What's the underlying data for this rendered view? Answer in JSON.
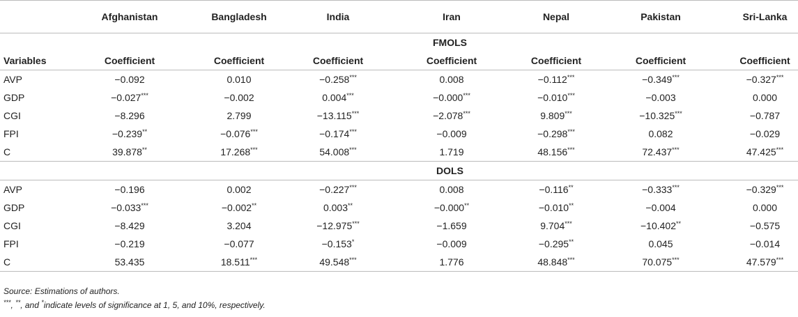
{
  "table": {
    "columns": [
      "Afghanistan",
      "Bangladesh",
      "India",
      "Iran",
      "Nepal",
      "Pakistan",
      "Sri-Lanka"
    ],
    "sections": [
      {
        "title": "FMOLS",
        "row_header": "Variables",
        "col_header": "Coefficient",
        "rows": [
          {
            "label": "AVP",
            "cells": [
              {
                "v": "−0.092"
              },
              {
                "v": "0.010"
              },
              {
                "v": "−0.258",
                "sig": "***"
              },
              {
                "v": "0.008"
              },
              {
                "v": "−0.112",
                "sig": "***"
              },
              {
                "v": "−0.349",
                "sig": "***"
              },
              {
                "v": "−0.327",
                "sig": "***"
              }
            ]
          },
          {
            "label": "GDP",
            "cells": [
              {
                "v": "−0.027",
                "sig": "***"
              },
              {
                "v": "−0.002"
              },
              {
                "v": "0.004",
                "sig": "***"
              },
              {
                "v": "−0.000",
                "sig": "***"
              },
              {
                "v": "−0.010",
                "sig": "***"
              },
              {
                "v": "−0.003"
              },
              {
                "v": "0.000"
              }
            ]
          },
          {
            "label": "CGI",
            "cells": [
              {
                "v": "−8.296"
              },
              {
                "v": "2.799"
              },
              {
                "v": "−13.115",
                "sig": "***"
              },
              {
                "v": "−2.078",
                "sig": "***"
              },
              {
                "v": "9.809",
                "sig": "***"
              },
              {
                "v": "−10.325",
                "sig": "***"
              },
              {
                "v": "−0.787"
              }
            ]
          },
          {
            "label": "FPI",
            "cells": [
              {
                "v": "−0.239",
                "sig": "**"
              },
              {
                "v": "−0.076",
                "sig": "***"
              },
              {
                "v": "−0.174",
                "sig": "***"
              },
              {
                "v": "−0.009"
              },
              {
                "v": "−0.298",
                "sig": "***"
              },
              {
                "v": "0.082"
              },
              {
                "v": "−0.029"
              }
            ]
          },
          {
            "label": "C",
            "cells": [
              {
                "v": "39.878",
                "sig": "**"
              },
              {
                "v": "17.268",
                "sig": "***"
              },
              {
                "v": "54.008",
                "sig": "***"
              },
              {
                "v": "1.719"
              },
              {
                "v": "48.156",
                "sig": "***"
              },
              {
                "v": "72.437",
                "sig": "***"
              },
              {
                "v": "47.425",
                "sig": "***"
              }
            ]
          }
        ]
      },
      {
        "title": "DOLS",
        "rows": [
          {
            "label": "AVP",
            "cells": [
              {
                "v": "−0.196"
              },
              {
                "v": "0.002"
              },
              {
                "v": "−0.227",
                "sig": "***"
              },
              {
                "v": "0.008"
              },
              {
                "v": "−0.116",
                "sig": "**"
              },
              {
                "v": "−0.333",
                "sig": "***"
              },
              {
                "v": "−0.329",
                "sig": "***"
              }
            ]
          },
          {
            "label": "GDP",
            "cells": [
              {
                "v": "−0.033",
                "sig": "***"
              },
              {
                "v": "−0.002",
                "sig": "**"
              },
              {
                "v": "0.003",
                "sig": "**"
              },
              {
                "v": "−0.000",
                "sig": "**"
              },
              {
                "v": "−0.010",
                "sig": "**"
              },
              {
                "v": "−0.004"
              },
              {
                "v": "0.000"
              }
            ]
          },
          {
            "label": "CGI",
            "cells": [
              {
                "v": "−8.429"
              },
              {
                "v": "3.204"
              },
              {
                "v": "−12.975",
                "sig": "***"
              },
              {
                "v": "−1.659"
              },
              {
                "v": "9.704",
                "sig": "***"
              },
              {
                "v": "−10.402",
                "sig": "**"
              },
              {
                "v": "−0.575"
              }
            ]
          },
          {
            "label": "FPI",
            "cells": [
              {
                "v": "−0.219"
              },
              {
                "v": "−0.077"
              },
              {
                "v": "−0.153",
                "sig": "*"
              },
              {
                "v": "−0.009"
              },
              {
                "v": "−0.295",
                "sig": "**"
              },
              {
                "v": "0.045"
              },
              {
                "v": "−0.014"
              }
            ]
          },
          {
            "label": "C",
            "cells": [
              {
                "v": "53.435"
              },
              {
                "v": "18.511",
                "sig": "***"
              },
              {
                "v": "49.548",
                "sig": "***"
              },
              {
                "v": "1.776"
              },
              {
                "v": "48.848",
                "sig": "***"
              },
              {
                "v": "70.075",
                "sig": "***"
              },
              {
                "v": "47.579",
                "sig": "***"
              }
            ]
          }
        ]
      }
    ],
    "notes": {
      "source": "Source: Estimations of authors.",
      "significance": [
        {
          "sup": "***"
        },
        {
          "text": ", "
        },
        {
          "sup": "**"
        },
        {
          "text": ", and "
        },
        {
          "sup": "*"
        },
        {
          "text": "indicate levels of significance at 1, 5, and 10%, respectively."
        }
      ]
    }
  }
}
